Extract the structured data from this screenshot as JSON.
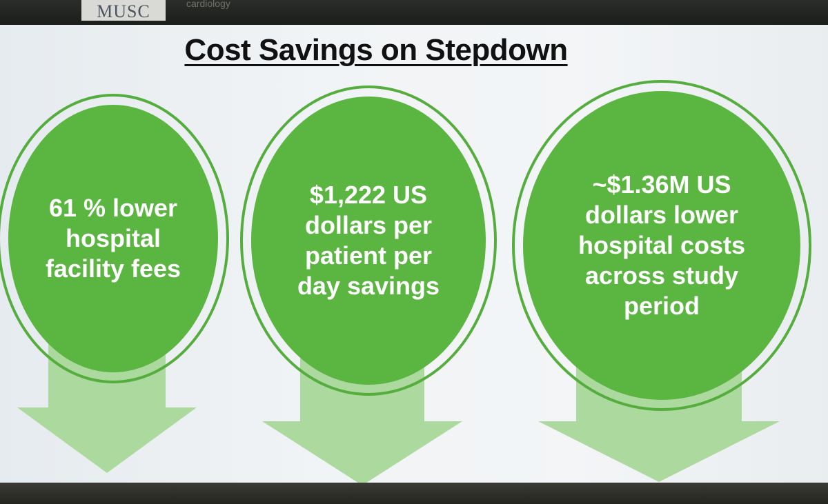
{
  "header": {
    "logo_text": "MUSC",
    "logo_subtext": "cardiology"
  },
  "slide": {
    "title": "Cost Savings on Stepdown",
    "items": [
      {
        "text": "61 % lower\nhospital\nfacility fees"
      },
      {
        "text": "$1,222 US\ndollars per\npatient per\nday savings"
      },
      {
        "text": "~$1.36M US\ndollars lower\nhospital costs\nacross study\nperiod"
      }
    ]
  },
  "colors": {
    "circle": "#5bb541",
    "ring": "#55ad3e",
    "arrow": "#a9d89a"
  }
}
